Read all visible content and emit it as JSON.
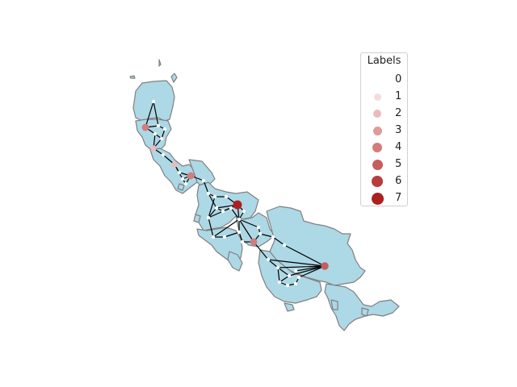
{
  "legend": {
    "title": "Labels",
    "items": [
      {
        "label": "0",
        "color": "#ffffff"
      },
      {
        "label": "1",
        "color": "#f3dcdc"
      },
      {
        "label": "2",
        "color": "#e9bcbc"
      },
      {
        "label": "3",
        "color": "#e09a9a"
      },
      {
        "label": "4",
        "color": "#d27c7c"
      },
      {
        "label": "5",
        "color": "#c55e5e"
      },
      {
        "label": "6",
        "color": "#b83c3c"
      },
      {
        "label": "7",
        "color": "#ad2020"
      }
    ]
  },
  "map_style": {
    "region_fill": "#add8e6",
    "region_stroke": "#808080",
    "edge_color": "#000000"
  }
}
